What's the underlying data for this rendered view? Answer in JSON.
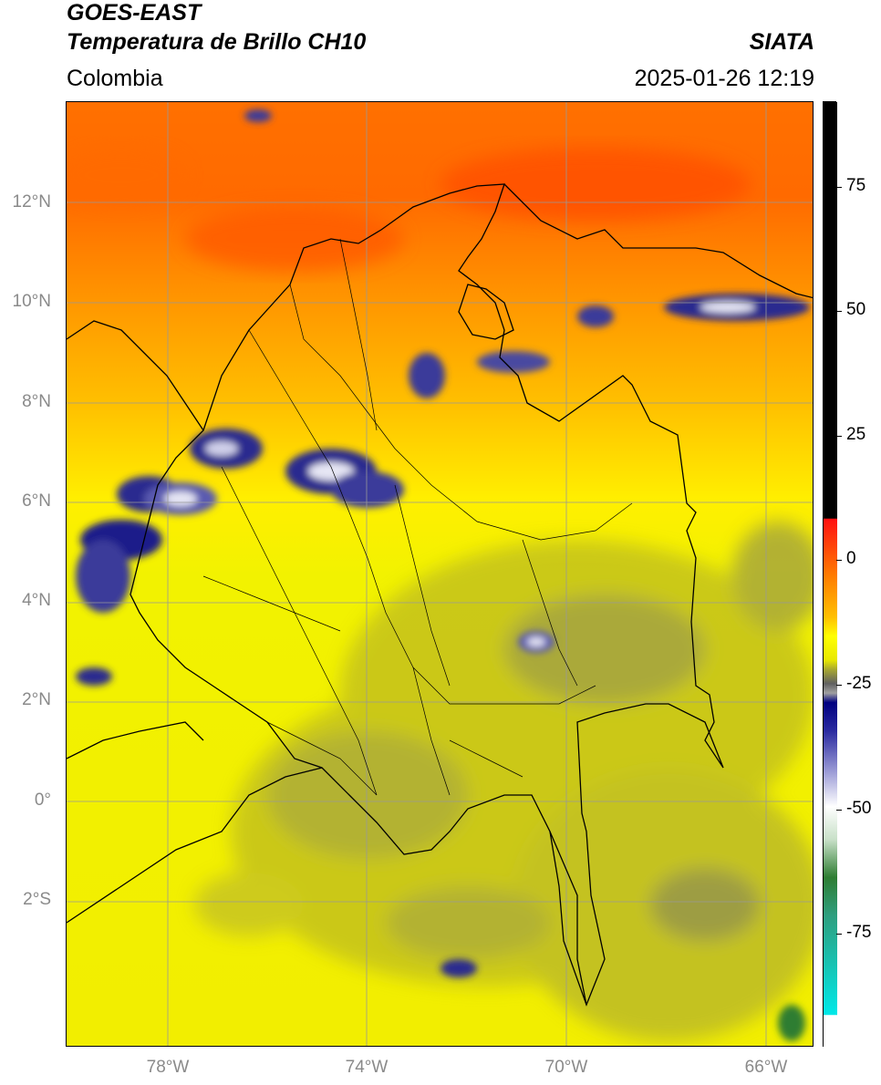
{
  "header": {
    "satellite": "GOES-EAST",
    "product": "Temperatura de Brillo CH10",
    "region": "Colombia",
    "organization": "SIATA",
    "datetime": "2025-01-26 12:19"
  },
  "map": {
    "lat_labels": [
      "12°N",
      "10°N",
      "8°N",
      "6°N",
      "4°N",
      "2°N",
      "0°",
      "2°S"
    ],
    "lon_labels": [
      "78°W",
      "74°W",
      "70°W",
      "66°W"
    ],
    "extent": {
      "lon_min": -80.0,
      "lon_max": -65.0,
      "lat_min": -4.9,
      "lat_max": 14.0
    },
    "grid": true
  },
  "colorbar": {
    "ticks": [
      "75",
      "50",
      "25",
      "0",
      "-25",
      "-50",
      "-75"
    ],
    "range": [
      -95,
      90
    ],
    "colors": {
      "max_band": "#000000",
      "warm": "#ff0000",
      "orange": "#ff9000",
      "yellow": "#ffff00",
      "olive": "#b8b820",
      "gray": "#606060",
      "navy": "#000080",
      "white": "#ffffff",
      "green": "#2e7d32",
      "teal": "#00e0e0"
    }
  }
}
